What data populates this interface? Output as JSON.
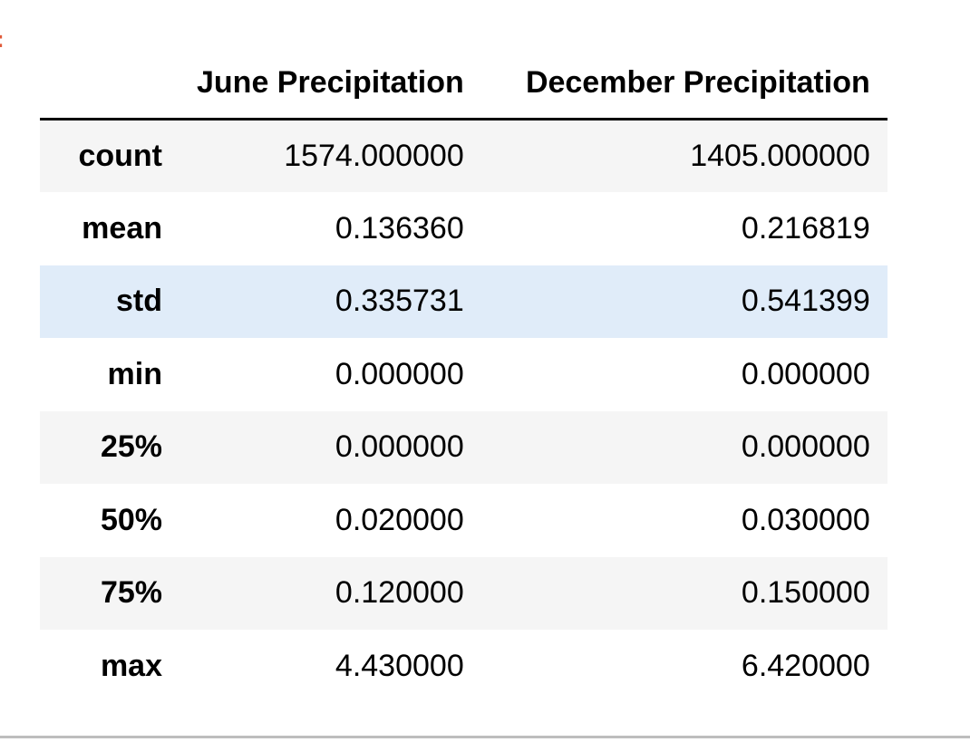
{
  "colors": {
    "corner_mark": "#e05a3a",
    "row_stripe": "#f5f5f5",
    "row_hover": "#e0ecf9",
    "header_rule": "#000000",
    "bottom_rule": "#bdbdbd"
  },
  "corner_mark": ":",
  "table": {
    "columns": [
      "June Precipitation",
      "December Precipitation"
    ],
    "rows": [
      {
        "label": "count",
        "june": "1574.000000",
        "december": "1405.000000"
      },
      {
        "label": "mean",
        "june": "0.136360",
        "december": "0.216819"
      },
      {
        "label": "std",
        "june": "0.335731",
        "december": "0.541399"
      },
      {
        "label": "min",
        "june": "0.000000",
        "december": "0.000000"
      },
      {
        "label": "25%",
        "june": "0.000000",
        "december": "0.000000"
      },
      {
        "label": "50%",
        "june": "0.020000",
        "december": "0.030000"
      },
      {
        "label": "75%",
        "june": "0.120000",
        "december": "0.150000"
      },
      {
        "label": "max",
        "june": "4.430000",
        "december": "6.420000"
      }
    ]
  }
}
